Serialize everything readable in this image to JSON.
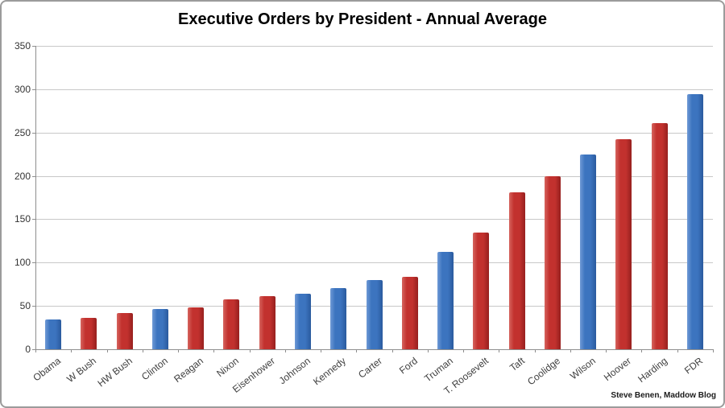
{
  "chart_data": {
    "type": "bar",
    "title": "Executive Orders by President - Annual Average",
    "categories": [
      "Obama",
      "W Bush",
      "HW Bush",
      "Clinton",
      "Reagan",
      "Nixon",
      "Eisenhower",
      "Johnson",
      "Kennedy",
      "Carter",
      "Ford",
      "Truman",
      "T. Roosevelt",
      "Taft",
      "Coolidge",
      "Wilson",
      "Hoover",
      "Harding",
      "FDR"
    ],
    "values": [
      34,
      36,
      42,
      46,
      48,
      58,
      61,
      64,
      71,
      80,
      84,
      112,
      135,
      181,
      200,
      225,
      242,
      261,
      294
    ],
    "party": [
      "dem",
      "rep",
      "rep",
      "dem",
      "rep",
      "rep",
      "rep",
      "dem",
      "dem",
      "dem",
      "rep",
      "dem",
      "rep",
      "rep",
      "rep",
      "dem",
      "rep",
      "rep",
      "dem"
    ],
    "colors": {
      "dem": "#3c74bf",
      "rep": "#c2312e"
    },
    "xlabel": "",
    "ylabel": "",
    "ylim": [
      0,
      350
    ],
    "y_ticks": [
      0,
      50,
      100,
      150,
      200,
      250,
      300,
      350
    ],
    "grid": "horizontal",
    "legend_position": "none"
  },
  "attribution": "Steve Benen, Maddow Blog"
}
